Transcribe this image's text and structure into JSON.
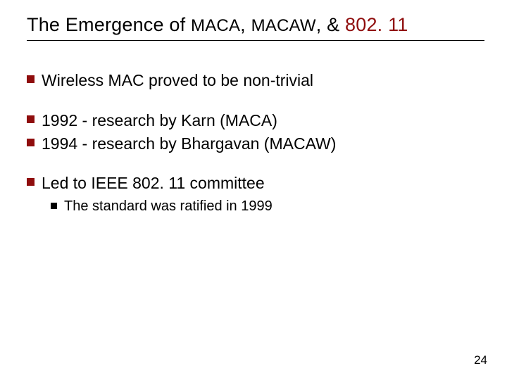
{
  "colors": {
    "accent": "#8f0d0d",
    "text": "#000000",
    "background": "#ffffff",
    "sub_bullet": "#000000"
  },
  "typography": {
    "title_fontsize": 27,
    "title_smallcaps_fontsize": 24,
    "bullet_fontsize": 23,
    "sub_bullet_fontsize": 20,
    "page_num_fontsize": 17
  },
  "title": {
    "lead": "The Emergence of ",
    "sc1": "MACA",
    "mid1": ", ",
    "sc2": "MACAW",
    "mid2": ", & ",
    "trail": "802. 11"
  },
  "groups": [
    {
      "items": [
        {
          "text": "Wireless MAC proved to be non-trivial"
        }
      ]
    },
    {
      "items": [
        {
          "text": "1992 - research by Karn (MACA)"
        },
        {
          "text": "1994 - research by Bhargavan (MACAW)"
        }
      ]
    },
    {
      "items": [
        {
          "text": "Led to IEEE 802. 11 committee",
          "sub": [
            {
              "text": "The standard was ratified in 1999"
            }
          ]
        }
      ]
    }
  ],
  "page_number": "24"
}
